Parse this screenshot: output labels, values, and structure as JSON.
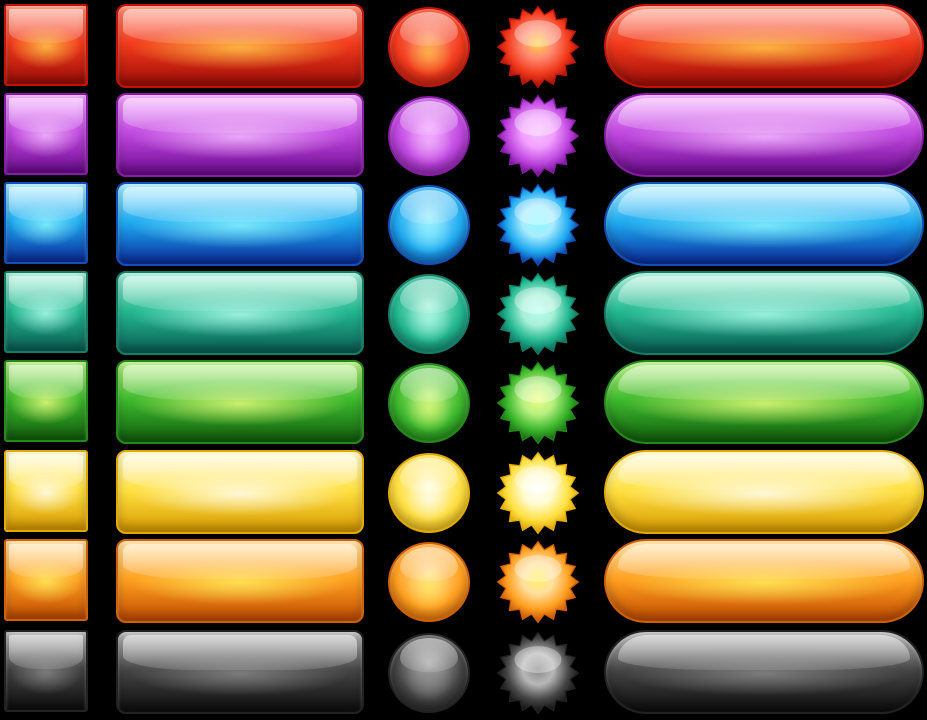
{
  "sheet": {
    "background": "#000000",
    "columns": [
      "square-button",
      "rectangle-button",
      "circle-button",
      "starburst-button",
      "pill-button"
    ]
  },
  "palette": [
    {
      "name": "red",
      "light": "#ff8a70",
      "mid": "#f23a1c",
      "dark": "#9c0c06",
      "edge": "#c41208",
      "glow": "#ffd24a"
    },
    {
      "name": "purple",
      "light": "#f2a0ff",
      "mid": "#c048e0",
      "dark": "#6a0a8c",
      "edge": "#8a1aa8",
      "glow": "#f6c0ff"
    },
    {
      "name": "blue",
      "light": "#a8ecff",
      "mid": "#1eaaf0",
      "dark": "#0a2a9c",
      "edge": "#1050b8",
      "glow": "#8ff8ff"
    },
    {
      "name": "teal",
      "light": "#a8f0d8",
      "mid": "#22b890",
      "dark": "#0a5c52",
      "edge": "#137e68",
      "glow": "#b8fff0"
    },
    {
      "name": "green",
      "light": "#b8f080",
      "mid": "#3cb82c",
      "dark": "#105c0c",
      "edge": "#228a18",
      "glow": "#f0ff80"
    },
    {
      "name": "yellow",
      "light": "#fffbd0",
      "mid": "#ffe040",
      "dark": "#d89a00",
      "edge": "#e0aa00",
      "glow": "#ffffff"
    },
    {
      "name": "orange",
      "light": "#ffe0a0",
      "mid": "#ffa020",
      "dark": "#c04a00",
      "edge": "#d06000",
      "glow": "#fff060"
    },
    {
      "name": "black",
      "light": "#b8b8b8",
      "mid": "#444444",
      "dark": "#0c0c0c",
      "edge": "#222222",
      "glow": "#8a8a8a"
    }
  ]
}
